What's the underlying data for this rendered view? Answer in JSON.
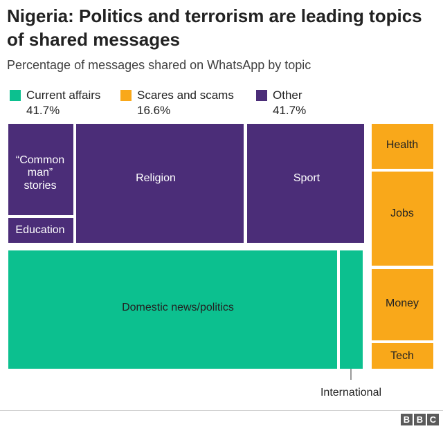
{
  "header": {
    "title": "Nigeria: Politics and terrorism are leading topics of shared messages",
    "subtitle": "Percentage of messages shared on WhatsApp by topic"
  },
  "legend": [
    {
      "name": "Current affairs",
      "value": "41.7%",
      "color": "#0cc08f"
    },
    {
      "name": "Scares and scams",
      "value": "16.6%",
      "color": "#f9a81a"
    },
    {
      "name": "Other",
      "value": "41.7%",
      "color": "#4b2d78"
    }
  ],
  "chart_data": {
    "type": "treemap",
    "title": "Nigeria: Politics and terrorism are leading topics of shared messages",
    "subtitle": "Percentage of messages shared on WhatsApp by topic",
    "groups": [
      {
        "name": "Current affairs",
        "value": 41.7,
        "color": "#0cc08f",
        "items": [
          "Domestic news/politics",
          "International"
        ]
      },
      {
        "name": "Scares and scams",
        "value": 16.6,
        "color": "#f9a81a",
        "items": [
          "Health",
          "Jobs",
          "Money",
          "Tech"
        ]
      },
      {
        "name": "Other",
        "value": 41.7,
        "color": "#4b2d78",
        "items": [
          "“Common man” stories",
          "Education",
          "Religion",
          "Sport"
        ]
      }
    ]
  },
  "labels": {
    "common_man_l1": "“Common",
    "common_man_l2": "man”",
    "common_man_l3": "stories",
    "education": "Education",
    "religion": "Religion",
    "sport": "Sport",
    "domestic": "Domestic news/politics",
    "international": "International",
    "health": "Health",
    "jobs": "Jobs",
    "money": "Money",
    "tech": "Tech"
  },
  "footer": {
    "logo_letters": [
      "B",
      "B",
      "C"
    ]
  }
}
